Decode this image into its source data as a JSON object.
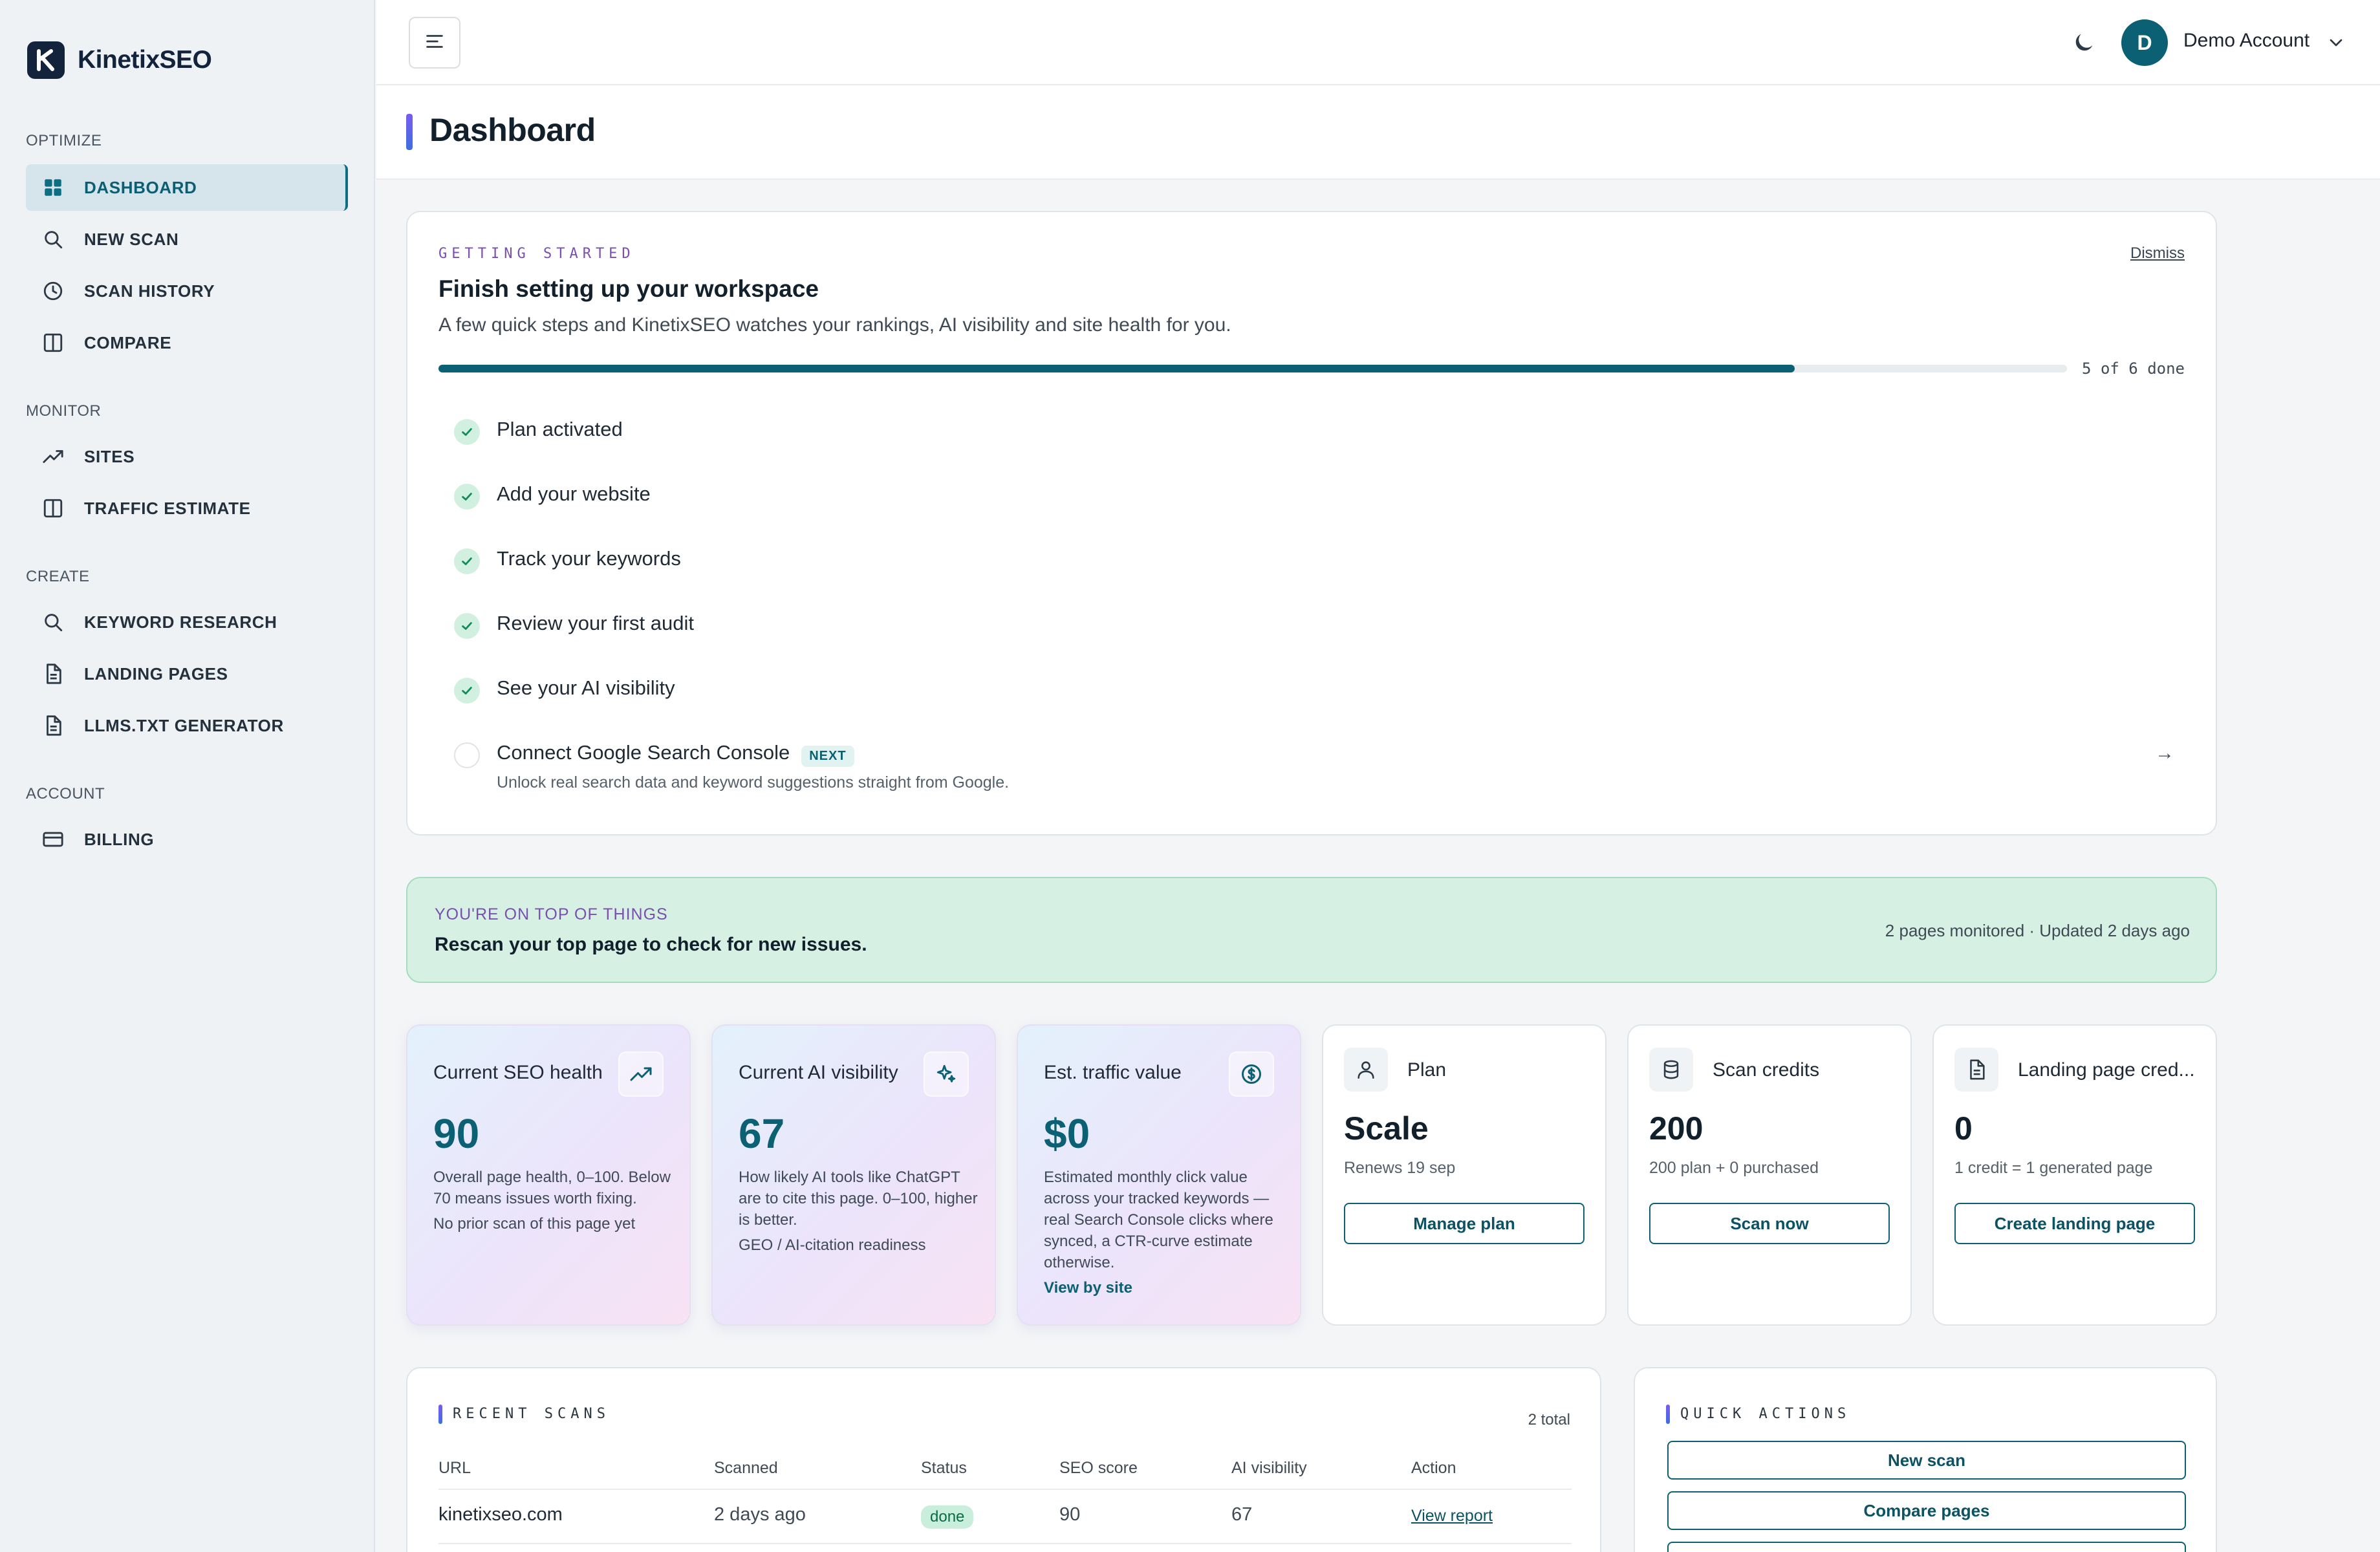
{
  "brand": {
    "name": "KinetixSEO"
  },
  "nav": {
    "sections": [
      {
        "title": "OPTIMIZE"
      },
      {
        "title": "MONITOR"
      },
      {
        "title": "CREATE"
      },
      {
        "title": "ACCOUNT"
      }
    ],
    "items": [
      {
        "label": "DASHBOARD",
        "icon": "grid-icon",
        "active": true
      },
      {
        "label": "NEW SCAN",
        "icon": "search-icon"
      },
      {
        "label": "SCAN HISTORY",
        "icon": "clock-icon"
      },
      {
        "label": "COMPARE",
        "icon": "columns-icon"
      },
      {
        "label": "SITES",
        "icon": "trending-up-icon"
      },
      {
        "label": "TRAFFIC ESTIMATE",
        "icon": "columns-icon"
      },
      {
        "label": "KEYWORD RESEARCH",
        "icon": "search-icon"
      },
      {
        "label": "LANDING PAGES",
        "icon": "file-icon"
      },
      {
        "label": "LLMS.TXT GENERATOR",
        "icon": "file-icon"
      },
      {
        "label": "BILLING",
        "icon": "credit-card-icon"
      }
    ]
  },
  "topbar": {
    "avatar_initial": "D",
    "account_name": "Demo Account"
  },
  "page": {
    "title": "Dashboard"
  },
  "getting_started": {
    "eyebrow": "GETTING STARTED",
    "dismiss": "Dismiss",
    "title": "Finish setting up your workspace",
    "subtitle": "A few quick steps and KinetixSEO watches your rankings, AI visibility and site health for you.",
    "progress_fraction": 0.833,
    "progress_label": "5 of 6 done",
    "steps": [
      {
        "label": "Plan activated",
        "done": true
      },
      {
        "label": "Add your website",
        "done": true
      },
      {
        "label": "Track your keywords",
        "done": true
      },
      {
        "label": "Review your first audit",
        "done": true
      },
      {
        "label": "See your AI visibility",
        "done": true
      },
      {
        "label": "Connect Google Search Console",
        "done": false,
        "badge": "NEXT",
        "description": "Unlock real search data and keyword suggestions straight from Google."
      }
    ],
    "arrow": "→"
  },
  "banner": {
    "eyebrow": "YOU'RE ON TOP OF THINGS",
    "text": "Rescan your top page to check for new issues.",
    "meta": "2 pages monitored · Updated 2 days ago"
  },
  "stats": [
    {
      "title": "Current SEO health",
      "icon": "trending-up-icon",
      "value": "90",
      "description": "Overall page health, 0–100. Below 70 means issues worth fixing.",
      "footer": "No prior scan of this page yet"
    },
    {
      "title": "Current AI visibility",
      "icon": "sparkles-icon",
      "value": "67",
      "description": "How likely AI tools like ChatGPT are to cite this page. 0–100, higher is better.",
      "footer": "GEO / AI-citation readiness"
    },
    {
      "title": "Est. traffic value",
      "icon": "dollar-icon",
      "value": "$0",
      "description": "Estimated monthly click value across your tracked keywords — real Search Console clicks where synced, a CTR-curve estimate otherwise.",
      "link": "View by site"
    }
  ],
  "plans": [
    {
      "title": "Plan",
      "icon": "user-icon",
      "value": "Scale",
      "sub": "Renews 19 sep",
      "button": "Manage plan"
    },
    {
      "title": "Scan credits",
      "icon": "database-icon",
      "value": "200",
      "sub": "200 plan + 0 purchased",
      "button": "Scan now"
    },
    {
      "title": "Landing page cred...",
      "icon": "file-icon",
      "value": "0",
      "sub": "1 credit = 1 generated page",
      "button": "Create landing page"
    }
  ],
  "recent_scans": {
    "eyebrow": "RECENT SCANS",
    "total": "2 total",
    "columns": [
      "URL",
      "Scanned",
      "Status",
      "SEO score",
      "AI visibility",
      "Action"
    ],
    "rows": [
      {
        "url": "kinetixseo.com",
        "scanned": "2 days ago",
        "status": "done",
        "seo": "90",
        "ai": "67",
        "action": "View report"
      }
    ]
  },
  "quick_actions": {
    "eyebrow": "QUICK ACTIONS",
    "buttons": [
      "New scan",
      "Compare pages"
    ]
  }
}
